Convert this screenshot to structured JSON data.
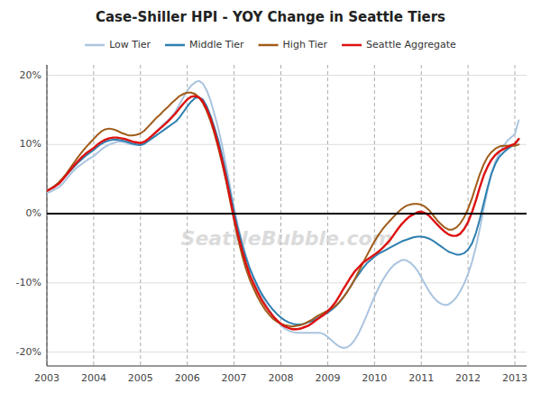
{
  "chart_data": {
    "type": "line",
    "title": "Case-Shiller HPI - YOY Change in Seattle Tiers",
    "annotations": [
      "SeattleBubble.com"
    ],
    "legend": "top",
    "grid": true,
    "xlim": [
      2003.0,
      2013.25
    ],
    "ylim": [
      -0.22,
      0.215
    ],
    "xticks": [
      2003,
      2004,
      2005,
      2006,
      2007,
      2008,
      2009,
      2010,
      2011,
      2012,
      2013
    ],
    "yticks": [
      {
        "value": -0.2,
        "label": "-20%"
      },
      {
        "value": -0.1,
        "label": "-10%"
      },
      {
        "value": 0.0,
        "label": "0%"
      },
      {
        "value": 0.1,
        "label": "10%"
      },
      {
        "value": 0.2,
        "label": "20%"
      }
    ],
    "x": [
      2003.0,
      2003.083,
      2003.167,
      2003.25,
      2003.333,
      2003.417,
      2003.5,
      2003.583,
      2003.667,
      2003.75,
      2003.833,
      2003.917,
      2004.0,
      2004.083,
      2004.167,
      2004.25,
      2004.333,
      2004.417,
      2004.5,
      2004.583,
      2004.667,
      2004.75,
      2004.833,
      2004.917,
      2005.0,
      2005.083,
      2005.167,
      2005.25,
      2005.333,
      2005.417,
      2005.5,
      2005.583,
      2005.667,
      2005.75,
      2005.833,
      2005.917,
      2006.0,
      2006.083,
      2006.167,
      2006.25,
      2006.333,
      2006.417,
      2006.5,
      2006.583,
      2006.667,
      2006.75,
      2006.833,
      2006.917,
      2007.0,
      2007.083,
      2007.167,
      2007.25,
      2007.333,
      2007.417,
      2007.5,
      2007.583,
      2007.667,
      2007.75,
      2007.833,
      2007.917,
      2008.0,
      2008.083,
      2008.167,
      2008.25,
      2008.333,
      2008.417,
      2008.5,
      2008.583,
      2008.667,
      2008.75,
      2008.833,
      2008.917,
      2009.0,
      2009.083,
      2009.167,
      2009.25,
      2009.333,
      2009.417,
      2009.5,
      2009.583,
      2009.667,
      2009.75,
      2009.833,
      2009.917,
      2010.0,
      2010.083,
      2010.167,
      2010.25,
      2010.333,
      2010.417,
      2010.5,
      2010.583,
      2010.667,
      2010.75,
      2010.833,
      2010.917,
      2011.0,
      2011.083,
      2011.167,
      2011.25,
      2011.333,
      2011.417,
      2011.5,
      2011.583,
      2011.667,
      2011.75,
      2011.833,
      2011.917,
      2012.0,
      2012.083,
      2012.167,
      2012.25,
      2012.333,
      2012.417,
      2012.5,
      2012.583,
      2012.667,
      2012.75,
      2012.833,
      2012.917,
      2013.0,
      2013.083
    ],
    "series": [
      {
        "name": "Low Tier",
        "color": "#aac4df",
        "values": [
          0.03,
          0.032,
          0.035,
          0.038,
          0.043,
          0.05,
          0.057,
          0.063,
          0.068,
          0.072,
          0.076,
          0.08,
          0.083,
          0.088,
          0.093,
          0.097,
          0.1,
          0.102,
          0.104,
          0.104,
          0.103,
          0.101,
          0.1,
          0.099,
          0.099,
          0.102,
          0.106,
          0.112,
          0.118,
          0.124,
          0.13,
          0.135,
          0.14,
          0.148,
          0.158,
          0.168,
          0.178,
          0.185,
          0.19,
          0.192,
          0.188,
          0.178,
          0.163,
          0.143,
          0.122,
          0.097,
          0.068,
          0.038,
          0.008,
          -0.018,
          -0.04,
          -0.06,
          -0.078,
          -0.093,
          -0.107,
          -0.119,
          -0.13,
          -0.139,
          -0.147,
          -0.155,
          -0.161,
          -0.166,
          -0.169,
          -0.171,
          -0.172,
          -0.172,
          -0.172,
          -0.172,
          -0.172,
          -0.172,
          -0.172,
          -0.174,
          -0.178,
          -0.183,
          -0.188,
          -0.192,
          -0.194,
          -0.193,
          -0.189,
          -0.182,
          -0.172,
          -0.16,
          -0.147,
          -0.133,
          -0.12,
          -0.108,
          -0.097,
          -0.088,
          -0.08,
          -0.074,
          -0.07,
          -0.067,
          -0.067,
          -0.07,
          -0.075,
          -0.082,
          -0.092,
          -0.102,
          -0.112,
          -0.12,
          -0.126,
          -0.13,
          -0.132,
          -0.131,
          -0.127,
          -0.121,
          -0.112,
          -0.101,
          -0.087,
          -0.07,
          -0.048,
          -0.022,
          0.007,
          0.035,
          0.058,
          0.075,
          0.087,
          0.097,
          0.105,
          0.11,
          0.115,
          0.135
        ]
      },
      {
        "name": "Middle Tier",
        "color": "#2e7fb0",
        "values": [
          0.033,
          0.036,
          0.04,
          0.044,
          0.05,
          0.056,
          0.062,
          0.068,
          0.074,
          0.079,
          0.084,
          0.088,
          0.092,
          0.097,
          0.101,
          0.104,
          0.106,
          0.107,
          0.107,
          0.106,
          0.105,
          0.103,
          0.101,
          0.1,
          0.099,
          0.101,
          0.105,
          0.109,
          0.113,
          0.117,
          0.121,
          0.125,
          0.129,
          0.133,
          0.139,
          0.147,
          0.155,
          0.162,
          0.167,
          0.168,
          0.165,
          0.155,
          0.141,
          0.124,
          0.105,
          0.082,
          0.057,
          0.03,
          0.002,
          -0.022,
          -0.044,
          -0.063,
          -0.079,
          -0.092,
          -0.104,
          -0.115,
          -0.124,
          -0.132,
          -0.139,
          -0.145,
          -0.15,
          -0.154,
          -0.157,
          -0.159,
          -0.16,
          -0.16,
          -0.159,
          -0.157,
          -0.155,
          -0.152,
          -0.149,
          -0.146,
          -0.143,
          -0.139,
          -0.134,
          -0.128,
          -0.121,
          -0.113,
          -0.104,
          -0.095,
          -0.087,
          -0.079,
          -0.072,
          -0.067,
          -0.062,
          -0.058,
          -0.055,
          -0.052,
          -0.049,
          -0.046,
          -0.043,
          -0.04,
          -0.038,
          -0.036,
          -0.034,
          -0.033,
          -0.033,
          -0.034,
          -0.036,
          -0.039,
          -0.043,
          -0.047,
          -0.051,
          -0.055,
          -0.057,
          -0.059,
          -0.059,
          -0.057,
          -0.052,
          -0.043,
          -0.028,
          -0.008,
          0.015,
          0.038,
          0.058,
          0.072,
          0.082,
          0.088,
          0.093,
          0.097,
          0.1,
          0.108
        ]
      },
      {
        "name": "High Tier",
        "color": "#a05c1a",
        "values": [
          0.033,
          0.036,
          0.04,
          0.045,
          0.051,
          0.058,
          0.066,
          0.074,
          0.082,
          0.089,
          0.096,
          0.102,
          0.108,
          0.114,
          0.119,
          0.122,
          0.123,
          0.122,
          0.12,
          0.117,
          0.115,
          0.113,
          0.113,
          0.114,
          0.116,
          0.12,
          0.126,
          0.132,
          0.138,
          0.143,
          0.149,
          0.154,
          0.16,
          0.165,
          0.17,
          0.173,
          0.175,
          0.175,
          0.173,
          0.168,
          0.16,
          0.148,
          0.133,
          0.115,
          0.094,
          0.071,
          0.046,
          0.018,
          -0.01,
          -0.036,
          -0.059,
          -0.079,
          -0.095,
          -0.108,
          -0.12,
          -0.13,
          -0.139,
          -0.146,
          -0.152,
          -0.156,
          -0.159,
          -0.161,
          -0.162,
          -0.163,
          -0.162,
          -0.161,
          -0.159,
          -0.156,
          -0.153,
          -0.149,
          -0.146,
          -0.143,
          -0.14,
          -0.137,
          -0.133,
          -0.128,
          -0.121,
          -0.113,
          -0.104,
          -0.094,
          -0.083,
          -0.072,
          -0.061,
          -0.05,
          -0.04,
          -0.031,
          -0.023,
          -0.016,
          -0.01,
          -0.004,
          0.002,
          0.007,
          0.011,
          0.013,
          0.014,
          0.014,
          0.013,
          0.01,
          0.005,
          -0.002,
          -0.009,
          -0.015,
          -0.02,
          -0.023,
          -0.023,
          -0.02,
          -0.014,
          -0.005,
          0.007,
          0.022,
          0.04,
          0.057,
          0.071,
          0.082,
          0.089,
          0.094,
          0.097,
          0.098,
          0.098,
          0.098,
          0.098,
          0.1
        ]
      },
      {
        "name": "Seattle Aggregate",
        "color": "#dd1111",
        "values": [
          0.033,
          0.036,
          0.039,
          0.043,
          0.049,
          0.056,
          0.063,
          0.07,
          0.076,
          0.082,
          0.087,
          0.091,
          0.095,
          0.1,
          0.104,
          0.107,
          0.109,
          0.11,
          0.11,
          0.109,
          0.108,
          0.106,
          0.104,
          0.103,
          0.102,
          0.104,
          0.108,
          0.113,
          0.118,
          0.123,
          0.128,
          0.133,
          0.139,
          0.145,
          0.152,
          0.159,
          0.165,
          0.169,
          0.17,
          0.168,
          0.162,
          0.151,
          0.137,
          0.119,
          0.098,
          0.075,
          0.05,
          0.022,
          -0.006,
          -0.03,
          -0.052,
          -0.071,
          -0.088,
          -0.101,
          -0.113,
          -0.124,
          -0.133,
          -0.141,
          -0.148,
          -0.154,
          -0.159,
          -0.163,
          -0.165,
          -0.167,
          -0.167,
          -0.166,
          -0.164,
          -0.162,
          -0.158,
          -0.154,
          -0.15,
          -0.146,
          -0.141,
          -0.135,
          -0.128,
          -0.119,
          -0.109,
          -0.1,
          -0.091,
          -0.083,
          -0.077,
          -0.071,
          -0.067,
          -0.063,
          -0.059,
          -0.055,
          -0.05,
          -0.044,
          -0.038,
          -0.03,
          -0.022,
          -0.015,
          -0.009,
          -0.004,
          -0.001,
          0.002,
          0.003,
          0.001,
          -0.003,
          -0.009,
          -0.015,
          -0.021,
          -0.026,
          -0.03,
          -0.032,
          -0.032,
          -0.029,
          -0.022,
          -0.012,
          0.002,
          0.019,
          0.038,
          0.055,
          0.068,
          0.078,
          0.085,
          0.09,
          0.093,
          0.096,
          0.099,
          0.101,
          0.108
        ]
      }
    ]
  }
}
